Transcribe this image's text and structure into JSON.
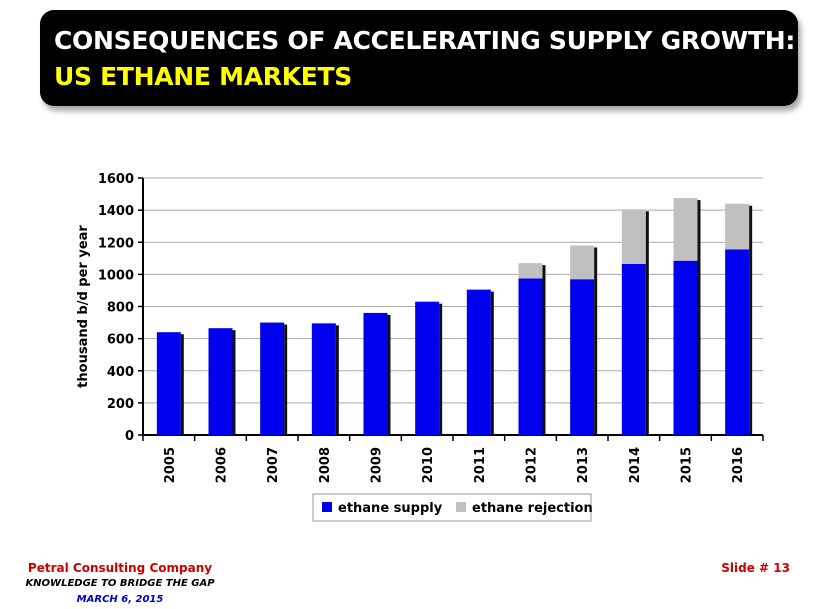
{
  "header": {
    "title_line1": "CONSEQUENCES OF ACCELERATING SUPPLY GROWTH:",
    "title_line2": "US ETHANE MARKETS"
  },
  "chart_data": {
    "type": "bar",
    "stacked": true,
    "categories": [
      "2005",
      "2006",
      "2007",
      "2008",
      "2009",
      "2010",
      "2011",
      "2012",
      "2013",
      "2014",
      "2015",
      "2016"
    ],
    "series": [
      {
        "name": "ethane supply",
        "color": "#0000ee",
        "values": [
          640,
          665,
          700,
          695,
          760,
          830,
          905,
          975,
          970,
          1065,
          1085,
          1155
        ]
      },
      {
        "name": "ethane rejection",
        "color": "#c0c0c0",
        "values": [
          0,
          0,
          0,
          0,
          0,
          0,
          0,
          95,
          210,
          340,
          390,
          285
        ]
      }
    ],
    "ylabel": "thousand b/d per year",
    "xlabel": "",
    "ylim": [
      0,
      1600
    ],
    "yticks": [
      0,
      200,
      400,
      600,
      800,
      1000,
      1200,
      1400,
      1600
    ],
    "grid": true,
    "legend_position": "bottom"
  },
  "footer": {
    "company": "Petral Consulting Company",
    "slogan": "KNOWLEDGE TO BRIDGE THE GAP",
    "date": "MARCH 6, 2015",
    "slide": "Slide # 13"
  }
}
